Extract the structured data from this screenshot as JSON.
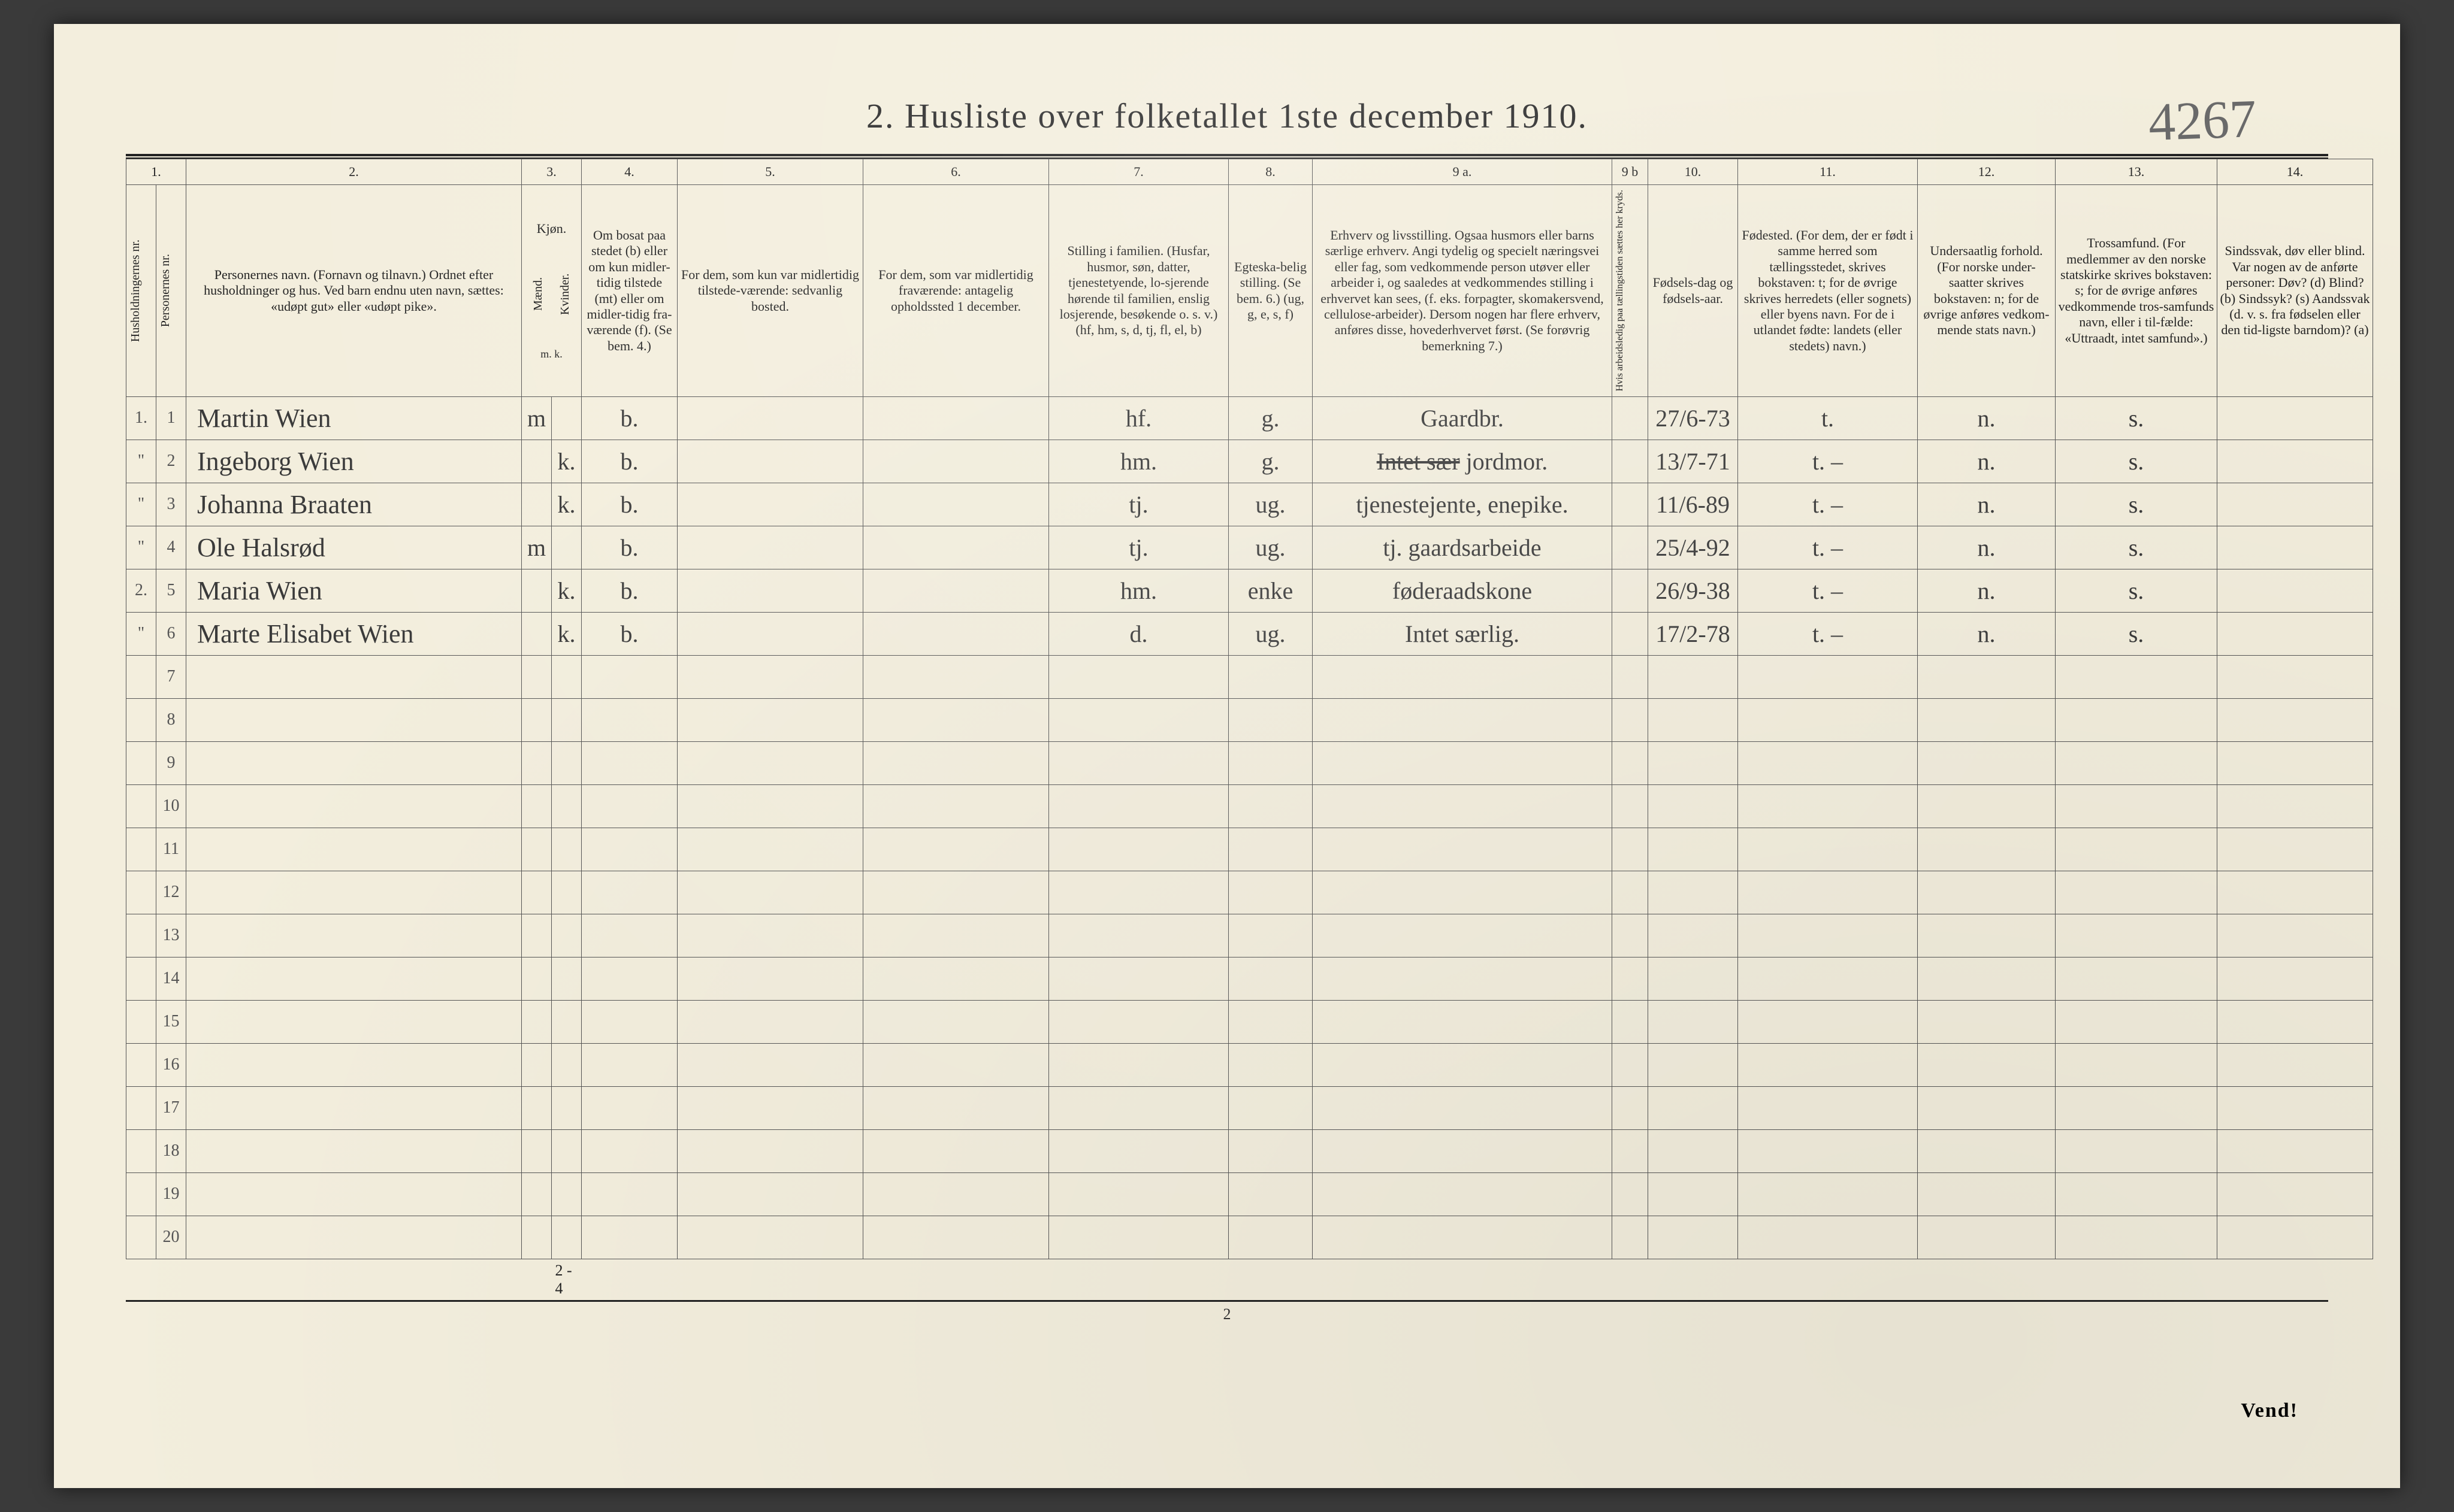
{
  "title": "2.  Husliste over folketallet 1ste december 1910.",
  "handwritten_corner": "4267",
  "page_number": "2",
  "vend": "Vend!",
  "footer_marks": "2 - 4",
  "columns": {
    "nums": [
      "1.",
      "2.",
      "3.",
      "4.",
      "5.",
      "6.",
      "7.",
      "8.",
      "9 a.",
      "9 b",
      "10.",
      "11.",
      "12.",
      "13.",
      "14."
    ],
    "h1_vert": "Husholdningernes nr.",
    "h1b_vert": "Personernes nr.",
    "h2": "Personernes navn.\n(Fornavn og tilnavn.)\nOrdnet efter husholdninger og hus.\nVed barn endnu uten navn, sættes: «udøpt gut» eller «udøpt pike».",
    "h3": "Kjøn.",
    "h3a_vert": "Mænd.",
    "h3b_vert": "Kvinder.",
    "h3_foot": "m.  k.",
    "h4": "Om bosat paa stedet (b) eller om kun midler-tidig tilstede (mt) eller om midler-tidig fra-værende (f). (Se bem. 4.)",
    "h5": "For dem, som kun var midlertidig tilstede-værende:\nsedvanlig bosted.",
    "h6": "For dem, som var midlertidig fraværende:\nantagelig opholdssted 1 december.",
    "h7": "Stilling i familien.\n(Husfar, husmor, søn, datter, tjenestetyende, lo-sjerende hørende til familien, enslig losjerende, besøkende o. s. v.)\n(hf, hm, s, d, tj, fl, el, b)",
    "h8": "Egteska-belig stilling.\n(Se bem. 6.)\n(ug, g, e, s, f)",
    "h9a": "Erhverv og livsstilling.\nOgsaa husmors eller barns særlige erhverv. Angi tydelig og specielt næringsvei eller fag, som vedkommende person utøver eller arbeider i, og saaledes at vedkommendes stilling i erhvervet kan sees, (f. eks. forpagter, skomakersvend, cellulose-arbeider). Dersom nogen har flere erhverv, anføres disse, hovederhvervet først.\n(Se forøvrig bemerkning 7.)",
    "h9b_vert": "Hvis arbeidsledig paa tællingstiden sættes her kryds.",
    "h10": "Fødsels-dag og fødsels-aar.",
    "h11": "Fødested.\n(For dem, der er født i samme herred som tællingsstedet, skrives bokstaven: t; for de øvrige skrives herredets (eller sognets) eller byens navn. For de i utlandet fødte: landets (eller stedets) navn.)",
    "h12": "Undersaatlig forhold.\n(For norske under-saatter skrives bokstaven: n; for de øvrige anføres vedkom-mende stats navn.)",
    "h13": "Trossamfund.\n(For medlemmer av den norske statskirke skrives bokstaven: s; for de øvrige anføres vedkommende tros-samfunds navn, eller i til-fælde: «Uttraadt, intet samfund».)",
    "h14": "Sindssvak, døv eller blind.\nVar nogen av de anførte personer:\nDøv? (d)\nBlind? (b)\nSindssyk? (s)\nAandssvak (d. v. s. fra fødselen eller den tid-ligste barndom)? (a)"
  },
  "rows": [
    {
      "hnr": "1.",
      "pnr": "1",
      "name": "Martin Wien",
      "m": "m",
      "k": "",
      "res": "b.",
      "c5": "",
      "c6": "",
      "fam": "hf.",
      "egt": "g.",
      "erhv": "Gaardbr.",
      "led": "",
      "dob": "27/6-73",
      "fst": "t.",
      "und": "n.",
      "tro": "s.",
      "c14": ""
    },
    {
      "hnr": "\"",
      "pnr": "2",
      "name": "Ingeborg Wien",
      "m": "",
      "k": "k.",
      "res": "b.",
      "c5": "",
      "c6": "",
      "fam": "hm.",
      "egt": "g.",
      "erhv": "Intet sær jordmor.",
      "led": "",
      "dob": "13/7-71",
      "fst": "t.  –",
      "und": "n.",
      "tro": "s.",
      "c14": ""
    },
    {
      "hnr": "\"",
      "pnr": "3",
      "name": "Johanna Braaten",
      "m": "",
      "k": "k.",
      "res": "b.",
      "c5": "",
      "c6": "",
      "fam": "tj.",
      "egt": "ug.",
      "erhv": "tjenestejente, enepike.",
      "led": "",
      "dob": "11/6-89",
      "fst": "t.  –",
      "und": "n.",
      "tro": "s.",
      "c14": ""
    },
    {
      "hnr": "\"",
      "pnr": "4",
      "name": "Ole Halsrød",
      "m": "m",
      "k": "",
      "res": "b.",
      "c5": "",
      "c6": "",
      "fam": "tj.",
      "egt": "ug.",
      "erhv": "tj. gaardsarbeide",
      "led": "",
      "dob": "25/4-92",
      "fst": "t.  –",
      "und": "n.",
      "tro": "s.",
      "c14": ""
    },
    {
      "hnr": "2.",
      "pnr": "5",
      "name": "Maria Wien",
      "m": "",
      "k": "k.",
      "res": "b.",
      "c5": "",
      "c6": "",
      "fam": "hm.",
      "egt": "enke",
      "erhv": "føderaadskone",
      "led": "",
      "dob": "26/9-38",
      "fst": "t.  –",
      "und": "n.",
      "tro": "s.",
      "c14": ""
    },
    {
      "hnr": "\"",
      "pnr": "6",
      "name": "Marte Elisabet Wien",
      "m": "",
      "k": "k.",
      "res": "b.",
      "c5": "",
      "c6": "",
      "fam": "d.",
      "egt": "ug.",
      "erhv": "Intet særlig.",
      "led": "",
      "dob": "17/2-78",
      "fst": "t.  –",
      "und": "n.",
      "tro": "s.",
      "c14": ""
    }
  ],
  "empty_row_labels": [
    "7",
    "8",
    "9",
    "10",
    "11",
    "12",
    "13",
    "14",
    "15",
    "16",
    "17",
    "18",
    "19",
    "20"
  ],
  "colors": {
    "paper": "#f3eedd",
    "ink": "#2a2a2a",
    "pencil": "#6a6a6a",
    "blue_pencil": "#5a6aa0",
    "border": "#555555"
  }
}
